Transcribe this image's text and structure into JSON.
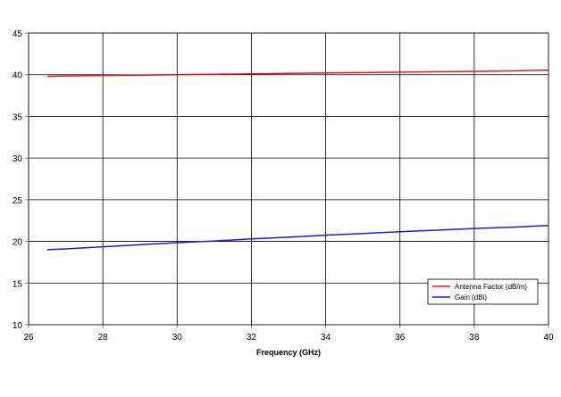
{
  "chart_data": {
    "type": "line",
    "title": "",
    "xlabel": "Frequency (GHz)",
    "ylabel": "",
    "xlim": [
      26,
      40
    ],
    "ylim": [
      10,
      45
    ],
    "x_ticks": [
      "26",
      "28",
      "30",
      "32",
      "34",
      "36",
      "38",
      "40"
    ],
    "y_ticks": [
      "10",
      "15",
      "20",
      "25",
      "30",
      "35",
      "40",
      "45"
    ],
    "grid": true,
    "legend": "bottom-right",
    "series": [
      {
        "name": "Antenna Factor (dB/m)",
        "color": "#e8161b",
        "x": [
          26.5,
          27,
          28,
          29,
          30,
          31,
          32,
          33,
          34,
          35,
          36,
          37,
          38,
          39,
          40
        ],
        "y": [
          39.8,
          39.85,
          39.9,
          39.95,
          40.0,
          40.05,
          40.1,
          40.15,
          40.2,
          40.25,
          40.3,
          40.35,
          40.4,
          40.45,
          40.55
        ]
      },
      {
        "name": "Gain (dBi)",
        "color": "#1a1add",
        "x": [
          26.5,
          27,
          28,
          29,
          30,
          31,
          32,
          33,
          34,
          35,
          36,
          37,
          38,
          39,
          40
        ],
        "y": [
          19.0,
          19.1,
          19.35,
          19.6,
          19.85,
          20.05,
          20.3,
          20.5,
          20.75,
          20.95,
          21.15,
          21.35,
          21.55,
          21.7,
          21.9
        ]
      }
    ]
  }
}
